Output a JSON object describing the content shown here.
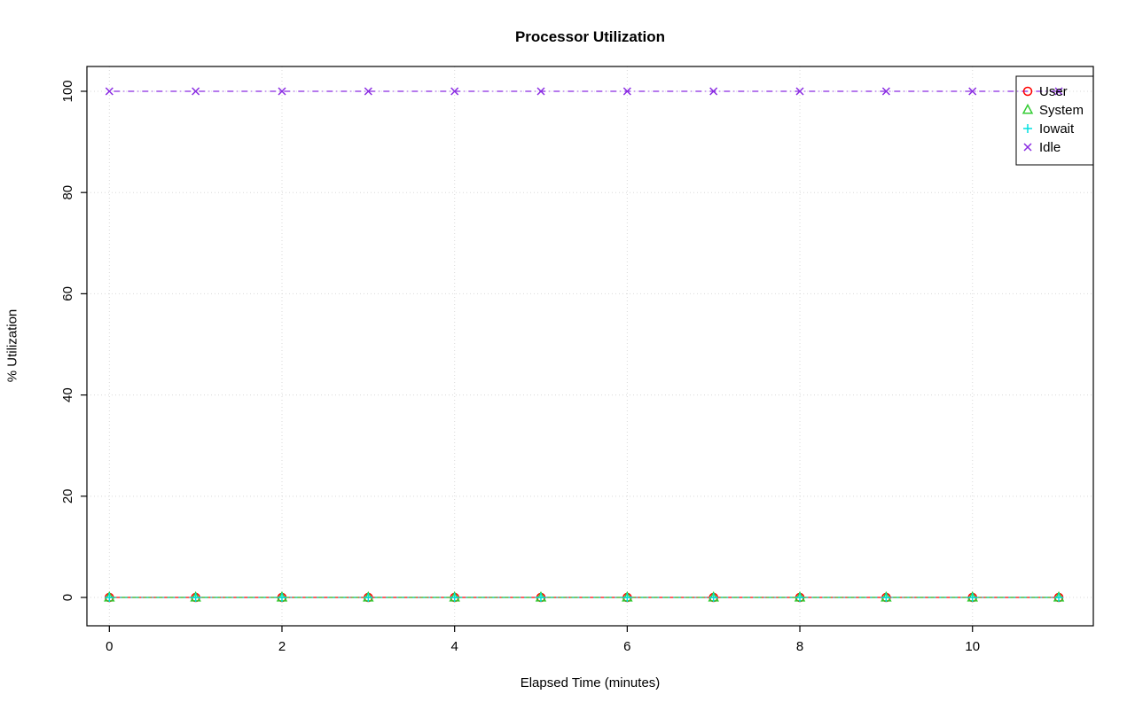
{
  "chart_data": {
    "type": "line",
    "title": "Processor Utilization",
    "xlabel": "Elapsed Time (minutes)",
    "ylabel": "% Utilization",
    "x": [
      0,
      1,
      2,
      3,
      4,
      5,
      6,
      7,
      8,
      9,
      10,
      11
    ],
    "xticks": [
      0,
      2,
      4,
      6,
      8,
      10
    ],
    "yticks": [
      0,
      20,
      40,
      60,
      80,
      100
    ],
    "xlim": [
      -0.26,
      11.4
    ],
    "ylim": [
      -5.6,
      104.9
    ],
    "grid": true,
    "grid_color": "#d9d9d9",
    "axis_color": "#000000",
    "legend_position": "top-right",
    "series": [
      {
        "name": "User",
        "color": "#ff0000",
        "marker": "circle",
        "dash": "",
        "values": [
          0,
          0,
          0,
          0,
          0,
          0,
          0,
          0,
          0,
          0,
          0,
          0
        ]
      },
      {
        "name": "System",
        "color": "#33cc33",
        "marker": "triangle",
        "dash": "8 5",
        "values": [
          0,
          0,
          0,
          0,
          0,
          0,
          0,
          0,
          0,
          0,
          0,
          0
        ]
      },
      {
        "name": "Iowait",
        "color": "#00e0e0",
        "marker": "plus",
        "dash": "2 4",
        "values": [
          0,
          0,
          0,
          0,
          0,
          0,
          0,
          0,
          0,
          0,
          0,
          0
        ]
      },
      {
        "name": "Idle",
        "color": "#8a2be2",
        "marker": "x",
        "dash": "1 4 7 4",
        "values": [
          100,
          100,
          100,
          100,
          100,
          100,
          100,
          100,
          100,
          100,
          100,
          100
        ]
      }
    ]
  }
}
